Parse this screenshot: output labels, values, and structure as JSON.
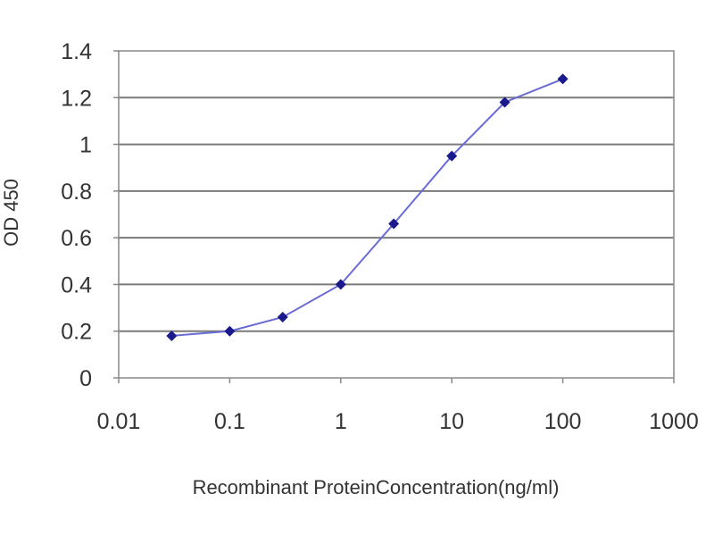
{
  "chart_data": {
    "type": "line",
    "title": "",
    "xlabel": "Recombinant ProteinConcentration(ng/ml)",
    "ylabel": "OD 450",
    "x_scale": "log",
    "xlim": [
      0.01,
      1000
    ],
    "ylim": [
      0,
      1.4
    ],
    "x_ticks": [
      0.01,
      0.1,
      1,
      10,
      100,
      1000
    ],
    "x_tick_labels": [
      "0.01",
      "0.1",
      "1",
      "10",
      "100",
      "1000"
    ],
    "y_ticks": [
      0,
      0.2,
      0.4,
      0.6,
      0.8,
      1,
      1.2,
      1.4
    ],
    "y_tick_labels": [
      "0",
      "0.2",
      "0.4",
      "0.6",
      "0.8",
      "1",
      "1.2",
      "1.4"
    ],
    "grid": "horizontal",
    "legend": "none",
    "series": [
      {
        "x": [
          0.03,
          0.1,
          0.3,
          1,
          3,
          10,
          30,
          100
        ],
        "y": [
          0.18,
          0.2,
          0.26,
          0.4,
          0.66,
          0.95,
          1.18,
          1.28
        ],
        "color": "#1a1a8c",
        "line_color": "#6b6bd6"
      }
    ]
  }
}
